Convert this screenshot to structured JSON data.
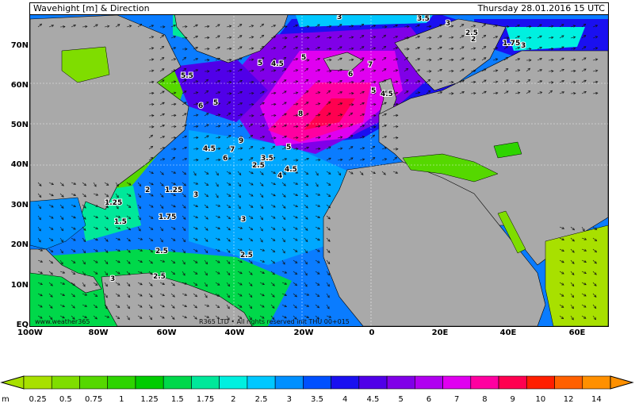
{
  "title": "Wavehight [m] & Direction",
  "datetime": "Thursday 28.01.2016 15 UTC",
  "copyright": "www.weather365",
  "rights": "R365 LTD • All rights reserved  init THU 00+015",
  "lat_labels": [
    "70N",
    "60N",
    "50N",
    "40N",
    "30N",
    "20N",
    "10N",
    "EQ"
  ],
  "lon_labels": [
    "100W",
    "80W",
    "60W",
    "40W",
    "20W",
    "0",
    "20E",
    "40E",
    "60E"
  ],
  "legend": {
    "unit": "m",
    "ticks": [
      "0.25",
      "0.5",
      "0.75",
      "1",
      "1.25",
      "1.5",
      "1.75",
      "2",
      "2.5",
      "3",
      "3.5",
      "4",
      "4.5",
      "5",
      "6",
      "7",
      "8",
      "9",
      "10",
      "12",
      "14"
    ],
    "colors": [
      "#a8e000",
      "#7fdd00",
      "#55d800",
      "#2ed400",
      "#00cc00",
      "#00d84a",
      "#00e89a",
      "#00f0e0",
      "#00c8ff",
      "#0090ff",
      "#0050ff",
      "#1a10f0",
      "#5000e8",
      "#8000e8",
      "#b000f0",
      "#e000f0",
      "#ff00a0",
      "#ff0050",
      "#ff1e00",
      "#ff6000",
      "#ff9000"
    ]
  },
  "value_labels": [
    "3",
    "3.5",
    "3",
    "2.5",
    "2",
    "1.75",
    "3",
    "5.5",
    "5",
    "5",
    "4.5",
    "5",
    "6",
    "7",
    "5",
    "4.5",
    "8",
    "6",
    "9",
    "4.5",
    "7",
    "6",
    "5",
    "2.5",
    "3.5",
    "4.5",
    "4",
    "1.25",
    "3",
    "2",
    "1.25",
    "1.5",
    "1.75",
    "3",
    "2.5",
    "2.5",
    "3",
    "2.5"
  ]
}
